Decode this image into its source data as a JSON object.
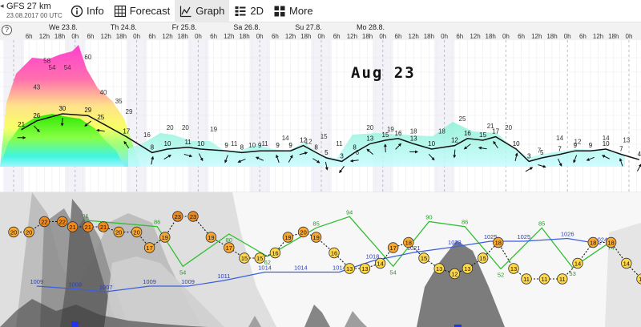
{
  "toolbar": {
    "model_name": "GFS 27 km",
    "model_time": "23.08.2017 00 UTC",
    "tabs": [
      {
        "label": "Info",
        "icon": "info-icon",
        "active": false
      },
      {
        "label": "Forecast",
        "icon": "table-grid-icon",
        "active": false
      },
      {
        "label": "Graph",
        "icon": "graph-icon",
        "active": true
      },
      {
        "label": "2D",
        "icon": "layers-2d-icon",
        "active": false
      },
      {
        "label": "More",
        "icon": "more-grid-icon",
        "active": false
      }
    ]
  },
  "overlay_date": "Aug 23",
  "help_label": "?",
  "chart_data": {
    "type": "line",
    "days": [
      "We 23.8.",
      "Th 24.8.",
      "Fr 25.8.",
      "Sa 26.8.",
      "Su 27.8.",
      "Mo 28.8."
    ],
    "hour_labels": [
      "6h",
      "12h",
      "18h",
      "0h"
    ],
    "wind": {
      "gust_peaks": [
        {
          "t": 9,
          "v": 43
        },
        {
          "t": 15,
          "v": 54
        },
        {
          "t": 21,
          "v": 54
        },
        {
          "t": 35,
          "v": 40
        },
        {
          "t": 41,
          "v": 35
        },
        {
          "t": 45,
          "v": 29
        },
        {
          "t": 52,
          "v": 16
        },
        {
          "t": 61,
          "v": 20
        },
        {
          "t": 67,
          "v": 20
        },
        {
          "t": 78,
          "v": 19
        },
        {
          "t": 86,
          "v": 11
        },
        {
          "t": 93,
          "v": 10
        },
        {
          "t": 98,
          "v": 11
        },
        {
          "t": 106,
          "v": 14
        },
        {
          "t": 115,
          "v": 12
        },
        {
          "t": 121,
          "v": 15
        },
        {
          "t": 127,
          "v": 11
        },
        {
          "t": 134,
          "v": 6
        },
        {
          "t": 139,
          "v": 20
        },
        {
          "t": 147,
          "v": 19
        },
        {
          "t": 156,
          "v": 18
        },
        {
          "t": 167,
          "v": 18
        },
        {
          "t": 175,
          "v": 25
        },
        {
          "t": 186,
          "v": 21
        },
        {
          "t": 193,
          "v": 20
        },
        {
          "t": 205,
          "v": 7
        },
        {
          "t": 213,
          "v": 14
        },
        {
          "t": 220,
          "v": 12
        },
        {
          "t": 231,
          "v": 14
        },
        {
          "t": 239,
          "v": 13
        }
      ],
      "gust_top": {
        "t": 29,
        "v": 60
      },
      "gust_max_left": {
        "t": 13,
        "v": 58
      },
      "speed_labels": [
        {
          "t": 3,
          "v": 21
        },
        {
          "t": 9,
          "v": 26
        },
        {
          "t": 19,
          "v": 30
        },
        {
          "t": 29,
          "v": 29
        },
        {
          "t": 34,
          "v": 25
        },
        {
          "t": 44,
          "v": 17
        },
        {
          "t": 54,
          "v": 8
        },
        {
          "t": 60,
          "v": 10
        },
        {
          "t": 68,
          "v": 11
        },
        {
          "t": 73,
          "v": 10
        },
        {
          "t": 83,
          "v": 9
        },
        {
          "t": 89,
          "v": 8
        },
        {
          "t": 96,
          "v": 9
        },
        {
          "t": 103,
          "v": 9
        },
        {
          "t": 108,
          "v": 9
        },
        {
          "t": 113,
          "v": 12
        },
        {
          "t": 118,
          "v": 8
        },
        {
          "t": 122,
          "v": 5
        },
        {
          "t": 128,
          "v": 3
        },
        {
          "t": 133,
          "v": 8
        },
        {
          "t": 139,
          "v": 13
        },
        {
          "t": 145,
          "v": 15
        },
        {
          "t": 150,
          "v": 16
        },
        {
          "t": 156,
          "v": 13
        },
        {
          "t": 163,
          "v": 10
        },
        {
          "t": 172,
          "v": 12
        },
        {
          "t": 177,
          "v": 16
        },
        {
          "t": 183,
          "v": 15
        },
        {
          "t": 188,
          "v": 17
        },
        {
          "t": 196,
          "v": 10
        },
        {
          "t": 201,
          "v": 3
        },
        {
          "t": 206,
          "v": 5
        },
        {
          "t": 213,
          "v": 7
        },
        {
          "t": 219,
          "v": 9
        },
        {
          "t": 225,
          "v": 9
        },
        {
          "t": 231,
          "v": 10
        },
        {
          "t": 237,
          "v": 7
        },
        {
          "t": 244,
          "v": 4
        }
      ]
    },
    "temperature": [
      {
        "t": 0,
        "v": 20
      },
      {
        "t": 6,
        "v": 20
      },
      {
        "t": 12,
        "v": 22
      },
      {
        "t": 19,
        "v": 22
      },
      {
        "t": 23,
        "v": 21
      },
      {
        "t": 29,
        "v": 21
      },
      {
        "t": 35,
        "v": 21
      },
      {
        "t": 41,
        "v": 20
      },
      {
        "t": 48,
        "v": 20
      },
      {
        "t": 53,
        "v": 17
      },
      {
        "t": 59,
        "v": 19
      },
      {
        "t": 64,
        "v": 23
      },
      {
        "t": 70,
        "v": 23
      },
      {
        "t": 77,
        "v": 19
      },
      {
        "t": 84,
        "v": 17
      },
      {
        "t": 90,
        "v": 15
      },
      {
        "t": 96,
        "v": 15
      },
      {
        "t": 102,
        "v": 16
      },
      {
        "t": 107,
        "v": 19
      },
      {
        "t": 113,
        "v": 20
      },
      {
        "t": 118,
        "v": 19
      },
      {
        "t": 125,
        "v": 16
      },
      {
        "t": 131,
        "v": 13
      },
      {
        "t": 137,
        "v": 13
      },
      {
        "t": 143,
        "v": 14
      },
      {
        "t": 148,
        "v": 17
      },
      {
        "t": 154,
        "v": 18
      },
      {
        "t": 160,
        "v": 15
      },
      {
        "t": 166,
        "v": 13
      },
      {
        "t": 172,
        "v": 12
      },
      {
        "t": 177,
        "v": 13
      },
      {
        "t": 183,
        "v": 15
      },
      {
        "t": 189,
        "v": 18
      },
      {
        "t": 195,
        "v": 13
      },
      {
        "t": 200,
        "v": 11
      },
      {
        "t": 207,
        "v": 11
      },
      {
        "t": 214,
        "v": 11
      },
      {
        "t": 220,
        "v": 14
      },
      {
        "t": 226,
        "v": 18
      },
      {
        "t": 233,
        "v": 18
      },
      {
        "t": 239,
        "v": 14
      },
      {
        "t": 245,
        "v": 11
      }
    ],
    "humidity_labels": [
      {
        "t": 28,
        "v": 91
      },
      {
        "t": 56,
        "v": 86
      },
      {
        "t": 66,
        "v": 54
      },
      {
        "t": 84,
        "v": 80
      },
      {
        "t": 99,
        "v": 62
      },
      {
        "t": 118,
        "v": 85
      },
      {
        "t": 131,
        "v": 94
      },
      {
        "t": 148,
        "v": 54
      },
      {
        "t": 162,
        "v": 90
      },
      {
        "t": 176,
        "v": 86
      },
      {
        "t": 190,
        "v": 52
      },
      {
        "t": 206,
        "v": 85
      },
      {
        "t": 218,
        "v": 53
      },
      {
        "t": 233,
        "v": 74
      }
    ],
    "pressure_labels": [
      {
        "t": 9,
        "v": 1009
      },
      {
        "t": 24,
        "v": 1008
      },
      {
        "t": 36,
        "v": 1007
      },
      {
        "t": 53,
        "v": 1009
      },
      {
        "t": 68,
        "v": 1009
      },
      {
        "t": 82,
        "v": 1011
      },
      {
        "t": 98,
        "v": 1014
      },
      {
        "t": 112,
        "v": 1014
      },
      {
        "t": 127,
        "v": 1014
      },
      {
        "t": 140,
        "v": 1018
      },
      {
        "t": 156,
        "v": 1021
      },
      {
        "t": 172,
        "v": 1023
      },
      {
        "t": 186,
        "v": 1025
      },
      {
        "t": 199,
        "v": 1025
      },
      {
        "t": 216,
        "v": 1026
      },
      {
        "t": 229,
        "v": 1024
      }
    ]
  }
}
